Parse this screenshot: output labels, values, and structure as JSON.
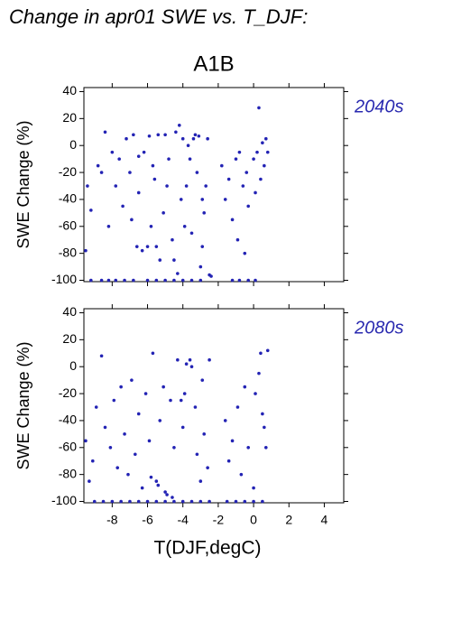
{
  "title": "Change in apr01 SWE vs. T_DJF:",
  "subtitle": "A1B",
  "chart_data": [
    {
      "type": "scatter",
      "label": "2040s",
      "ylabel": "SWE Change (%)",
      "color": "#2323b4",
      "xlim": [
        -9.6,
        5.1
      ],
      "ylim": [
        -101,
        43
      ],
      "yticks": [
        -100,
        -80,
        -60,
        -40,
        -20,
        0,
        20,
        40
      ],
      "x": [
        -9.5,
        -9.4,
        -9.2,
        -8.8,
        -8.6,
        -8.4,
        -8.2,
        -8.0,
        -7.8,
        -7.6,
        -7.4,
        -7.2,
        -7.0,
        -6.9,
        -6.8,
        -6.6,
        -6.5,
        -6.3,
        -6.2,
        -6.0,
        -5.9,
        -5.8,
        -5.6,
        -5.5,
        -5.4,
        -5.3,
        -5.1,
        -5.0,
        -4.8,
        -4.6,
        -4.5,
        -4.4,
        -4.3,
        -4.2,
        -4.1,
        -4.0,
        -3.9,
        -3.8,
        -3.7,
        -3.5,
        -3.4,
        -3.3,
        -3.2,
        -3.1,
        -3.0,
        -2.9,
        -2.8,
        -2.7,
        -2.6,
        -2.5,
        -2.4,
        -1.8,
        -1.6,
        -1.4,
        -1.2,
        -1.0,
        -0.9,
        -0.8,
        -0.6,
        -0.5,
        -0.4,
        -0.3,
        0.0,
        0.1,
        0.2,
        0.3,
        0.4,
        0.5,
        0.6,
        0.7,
        0.8,
        -9.2,
        -8.6,
        -8.2,
        -7.8,
        -7.3,
        -6.8,
        -6.0,
        -5.5,
        -5.0,
        -4.5,
        -4.0,
        -3.5,
        -3.0,
        -1.2,
        -0.8,
        -0.3,
        0.1,
        -6.5,
        -5.7,
        -4.9,
        -3.6,
        -2.9
      ],
      "values": [
        -78,
        -30,
        -48,
        -15,
        -20,
        10,
        -60,
        -5,
        -30,
        -10,
        -45,
        5,
        -20,
        -55,
        8,
        -75,
        -35,
        -78,
        -5,
        -75,
        7,
        -60,
        -25,
        -75,
        8,
        -85,
        -50,
        8,
        -10,
        -70,
        -85,
        10,
        -95,
        15,
        -40,
        5,
        -60,
        -30,
        0,
        -65,
        5,
        8,
        -20,
        7,
        -90,
        -75,
        -50,
        -30,
        5,
        -96,
        -97,
        -15,
        -40,
        -25,
        -55,
        -10,
        -70,
        -5,
        -30,
        -80,
        -20,
        -45,
        -10,
        -35,
        -5,
        28,
        -25,
        2,
        -15,
        5,
        -5,
        -100,
        -100,
        -100,
        -100,
        -100,
        -100,
        -100,
        -100,
        -100,
        -100,
        -100,
        -100,
        -100,
        -100,
        -100,
        -100,
        -100,
        -8,
        -15,
        -30,
        -10,
        -40
      ]
    },
    {
      "type": "scatter",
      "label": "2080s",
      "ylabel": "SWE Change (%)",
      "xlabel": "T(DJF,degC)",
      "color": "#2323b4",
      "xlim": [
        -9.6,
        5.1
      ],
      "ylim": [
        -101,
        43
      ],
      "yticks": [
        -100,
        -80,
        -60,
        -40,
        -20,
        0,
        20,
        40
      ],
      "xticks": [
        -8,
        -6,
        -4,
        -2,
        0,
        2,
        4
      ],
      "x": [
        -9.5,
        -9.3,
        -9.1,
        -8.9,
        -8.6,
        -8.4,
        -8.1,
        -7.9,
        -7.7,
        -7.5,
        -7.3,
        -7.1,
        -6.9,
        -6.7,
        -6.5,
        -6.3,
        -6.1,
        -5.9,
        -5.7,
        -5.5,
        -5.3,
        -5.1,
        -4.9,
        -4.7,
        -4.5,
        -4.3,
        -4.1,
        -4.0,
        -3.9,
        -3.8,
        -3.6,
        -3.5,
        -3.3,
        -3.2,
        -3.0,
        -2.9,
        -2.8,
        -2.6,
        -2.5,
        -1.6,
        -1.4,
        -1.2,
        -0.9,
        -0.7,
        -0.5,
        -0.3,
        0.0,
        0.1,
        0.3,
        0.4,
        0.5,
        0.6,
        0.7,
        0.8,
        -9.0,
        -8.5,
        -8.0,
        -7.5,
        -7.0,
        -6.5,
        -6.0,
        -5.5,
        -5.0,
        -4.5,
        -4.0,
        -3.5,
        -3.0,
        -2.5,
        -1.5,
        -1.0,
        -0.5,
        0.0,
        0.5,
        -5.8,
        -5.4,
        -5.0,
        -4.6
      ],
      "values": [
        -55,
        -85,
        -70,
        -30,
        8,
        -45,
        -60,
        -25,
        -75,
        -15,
        -50,
        -80,
        -10,
        -65,
        -35,
        -90,
        -20,
        -55,
        10,
        -85,
        -40,
        -15,
        -95,
        -25,
        -60,
        5,
        -25,
        -45,
        -20,
        2,
        5,
        0,
        -30,
        -65,
        -85,
        -10,
        -50,
        -75,
        5,
        -40,
        -70,
        -55,
        -30,
        -80,
        -15,
        -60,
        -90,
        -20,
        -5,
        10,
        -35,
        -45,
        -60,
        12,
        -100,
        -100,
        -100,
        -100,
        -100,
        -100,
        -100,
        -100,
        -100,
        -100,
        -100,
        -100,
        -100,
        -100,
        -100,
        -100,
        -100,
        -100,
        -100,
        -82,
        -88,
        -93,
        -97
      ]
    }
  ]
}
